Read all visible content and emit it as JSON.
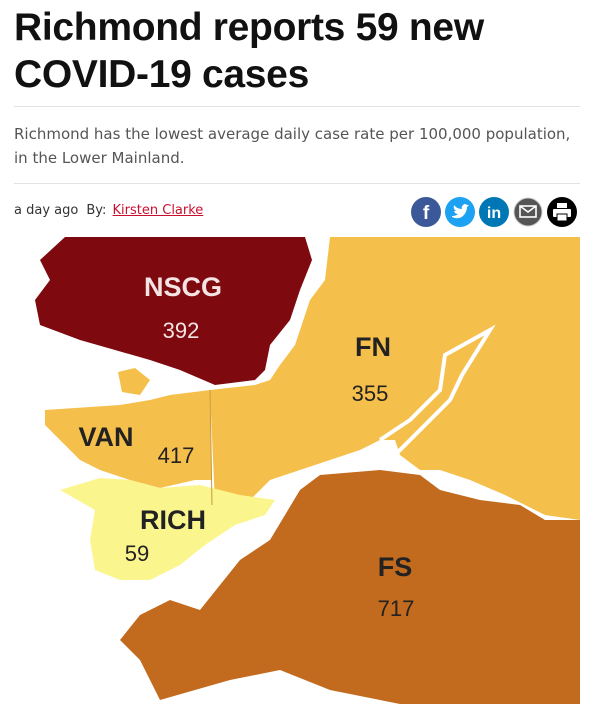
{
  "article": {
    "headline": "Richmond reports 59 new COVID-19 cases",
    "subtitle": "Richmond has the lowest average daily case rate per 100,000 population, in the Lower Mainland.",
    "timestamp": "a day ago",
    "by": "By:",
    "author": "Kirsten Clarke",
    "share": {
      "facebook": "f",
      "linkedin": "in"
    }
  },
  "map": {
    "regions": [
      {
        "name": "NSCG",
        "value": "392"
      },
      {
        "name": "FN",
        "value": "355"
      },
      {
        "name": "VAN",
        "value": "417"
      },
      {
        "name": "RICH",
        "value": "59"
      },
      {
        "name": "FS",
        "value": "717"
      }
    ]
  }
}
